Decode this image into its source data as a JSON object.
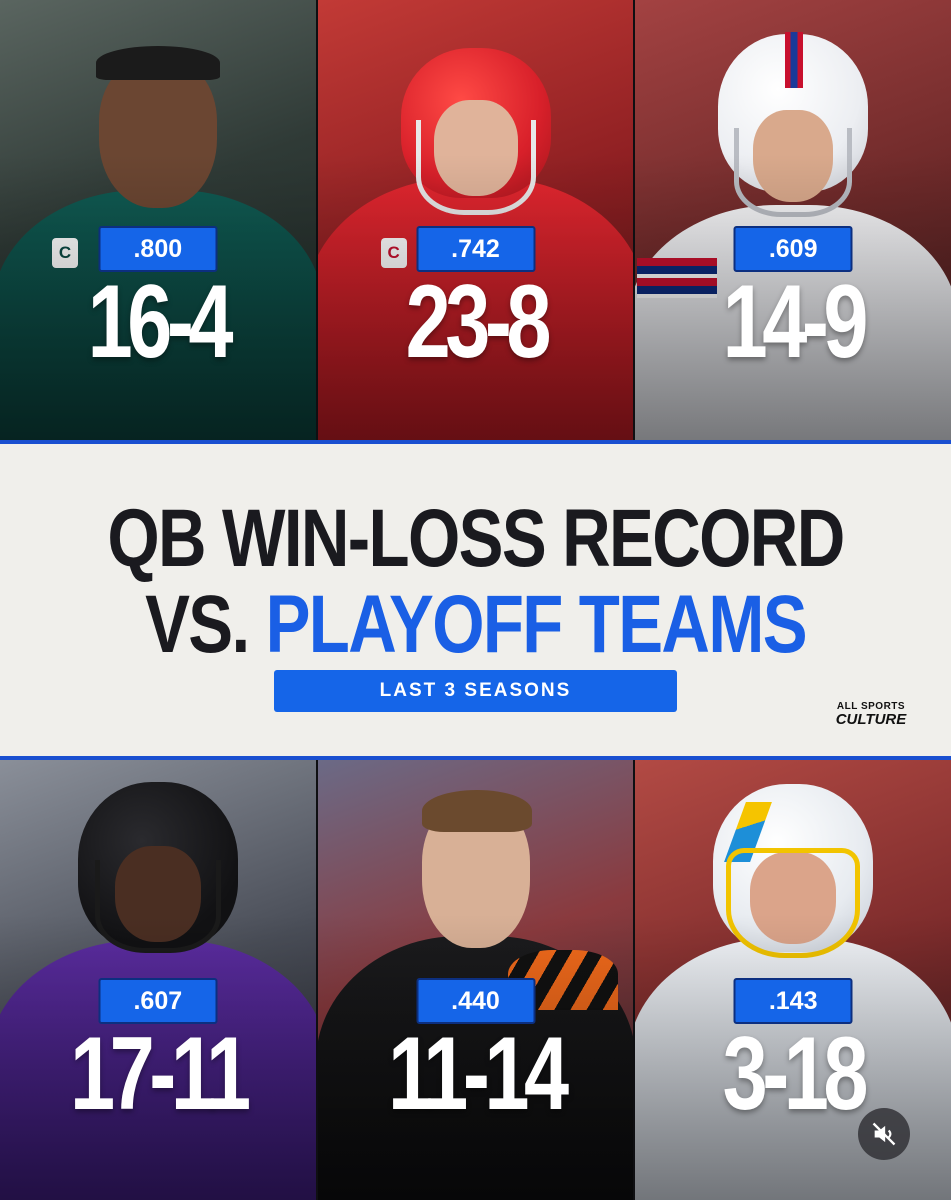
{
  "title": {
    "line1": "QB WIN-LOSS RECORD",
    "line2_prefix": "VS.",
    "line2_highlight": "PLAYOFF TEAMS"
  },
  "subtitle_badge": "LAST 3 SEASONS",
  "brand": {
    "line1": "ALL SPORTS",
    "line2": "CULTURE"
  },
  "captain_mark": "C",
  "players": [
    {
      "pct": ".800",
      "record": "16-4",
      "team_color": "#0b4a44"
    },
    {
      "pct": ".742",
      "record": "23-8",
      "team_color": "#d6212e"
    },
    {
      "pct": ".609",
      "record": "14-9",
      "team_color": "#ffffff"
    },
    {
      "pct": ".607",
      "record": "17-11",
      "team_color": "#3c1c7a"
    },
    {
      "pct": ".440",
      "record": "11-14",
      "team_color": "#111111"
    },
    {
      "pct": ".143",
      "record": "3-18",
      "team_color": "#e9eef4"
    }
  ],
  "colors": {
    "accent_blue": "#1565e8",
    "title_dark": "#1a1a1f"
  },
  "icons": {
    "mute": "speaker-muted-icon"
  }
}
